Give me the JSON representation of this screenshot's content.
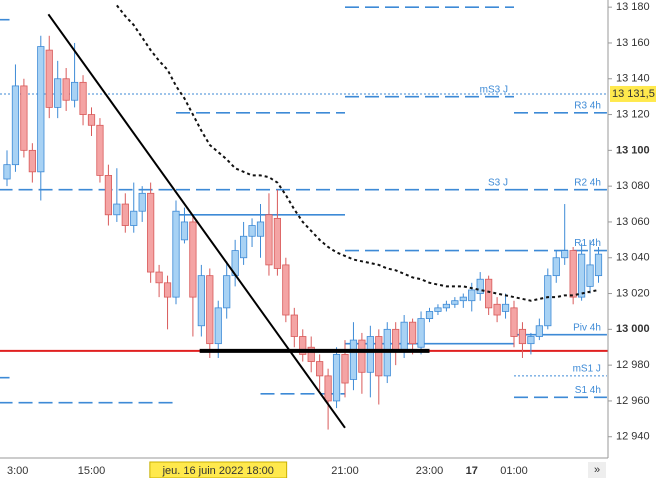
{
  "chart_data": {
    "type": "candlestick",
    "categories": [
      "3:00",
      null,
      null,
      null,
      null,
      null,
      null,
      null,
      null,
      null,
      "15:00",
      null,
      null,
      null,
      null,
      null,
      null,
      null,
      null,
      null,
      null,
      null,
      null,
      null,
      null,
      "jeu. 16 juin 2022 18:00",
      null,
      null,
      null,
      null,
      null,
      null,
      null,
      null,
      null,
      null,
      null,
      null,
      null,
      null,
      "21:00",
      null,
      null,
      null,
      null,
      null,
      null,
      null,
      null,
      null,
      "23:00",
      null,
      null,
      null,
      null,
      "17",
      null,
      null,
      null,
      null,
      "01:00",
      null,
      null,
      null,
      null,
      null,
      null,
      null,
      null,
      null,
      null
    ],
    "ohlc": {
      "open": [
        13084,
        13092,
        13136,
        13100,
        13088,
        13156,
        13124,
        13140,
        13128,
        13138,
        13120,
        13114,
        13086,
        13064,
        13070,
        13058,
        13066,
        13076,
        13032,
        13026,
        13018,
        13050,
        13060,
        13002,
        13030,
        12992,
        13012,
        13030,
        13040,
        13052,
        13052,
        13064,
        13062,
        13036,
        13008,
        12996,
        12990,
        12982,
        12974,
        12960,
        12986,
        12972,
        12994,
        12976,
        12996,
        12974,
        13000,
        12988,
        13004,
        12990,
        13006,
        13010,
        13012,
        13014,
        13016,
        13016,
        13020,
        13028,
        13014,
        13010,
        13012,
        13000,
        12992,
        12996,
        13002,
        13030,
        13040,
        13044,
        13018,
        13024,
        13030
      ],
      "high": [
        13100,
        13148,
        13140,
        13104,
        13164,
        13164,
        13150,
        13146,
        13160,
        13142,
        13124,
        13118,
        13092,
        13090,
        13076,
        13082,
        13080,
        13082,
        13036,
        13030,
        13072,
        13068,
        13064,
        13036,
        13034,
        13016,
        13038,
        13050,
        13060,
        13062,
        13070,
        13076,
        13078,
        13040,
        13012,
        13000,
        12996,
        12986,
        12978,
        12990,
        12994,
        13004,
        12998,
        13002,
        13000,
        13004,
        13004,
        13008,
        13006,
        13010,
        13012,
        13014,
        13016,
        13018,
        13020,
        13026,
        13032,
        13030,
        13018,
        13020,
        13016,
        13004,
        12998,
        13006,
        13034,
        13044,
        13070,
        13046,
        13048,
        13050,
        13046
      ],
      "low": [
        13080,
        13088,
        13096,
        13082,
        13072,
        13118,
        13118,
        13122,
        13124,
        13114,
        13108,
        13082,
        13058,
        13060,
        13054,
        13054,
        13060,
        13026,
        13018,
        13000,
        13014,
        13048,
        12996,
        12996,
        12984,
        12984,
        13006,
        13024,
        13036,
        13046,
        13040,
        13030,
        13030,
        13004,
        12990,
        12982,
        12976,
        12966,
        12944,
        12956,
        12962,
        12966,
        12964,
        12962,
        12958,
        12970,
        12980,
        12984,
        12986,
        12986,
        13004,
        13008,
        13010,
        13012,
        13012,
        13010,
        13016,
        13008,
        13004,
        13006,
        12990,
        12984,
        12986,
        12994,
        13000,
        13026,
        13036,
        13014,
        13016,
        13020,
        13026
      ],
      "close": [
        13092,
        13136,
        13100,
        13088,
        13158,
        13124,
        13140,
        13128,
        13138,
        13120,
        13114,
        13086,
        13064,
        13070,
        13058,
        13066,
        13076,
        13032,
        13026,
        13018,
        13066,
        13060,
        13018,
        13030,
        12992,
        13012,
        13030,
        13044,
        13052,
        13058,
        13060,
        13036,
        13034,
        13008,
        12996,
        12986,
        12982,
        12974,
        12960,
        12986,
        12970,
        12994,
        12976,
        12996,
        12974,
        13000,
        12988,
        13004,
        12992,
        13006,
        13010,
        13012,
        13014,
        13016,
        13018,
        13022,
        13028,
        13012,
        13008,
        13014,
        12996,
        12992,
        12996,
        13002,
        13030,
        13040,
        13044,
        13018,
        13042,
        13036,
        13042
      ]
    },
    "up_color": "#a8d2f4",
    "up_edge": "#3d8ad6",
    "down_color": "#f4a4a4",
    "down_edge": "#d85a5a",
    "moving_average": [
      null,
      null,
      null,
      null,
      null,
      null,
      null,
      null,
      null,
      null,
      null,
      null,
      null,
      13181,
      13175,
      13170,
      13163,
      13156,
      13150,
      13145,
      13136,
      13129,
      13120,
      13111,
      13103,
      13099,
      13095,
      13090,
      13088,
      13086,
      13086,
      13085,
      13082,
      13075,
      13067,
      13060,
      13055,
      13050,
      13046,
      13043,
      13041,
      13039,
      13038,
      13037,
      13036,
      13034,
      13033,
      13031,
      13029,
      13028,
      13026,
      13025,
      13024,
      13024,
      13024,
      13023,
      13022,
      13021,
      13020,
      13019,
      13018,
      13017,
      13016,
      13017,
      13018,
      13018,
      13019,
      13019,
      13020,
      13021,
      13022
    ],
    "levels": [
      {
        "value": 13173,
        "from": -1,
        "to": 0.3,
        "style": "dashed"
      },
      {
        "value": 13078,
        "from": -1,
        "to": 20,
        "style": "dashed"
      },
      {
        "value": 12973,
        "from": -1,
        "to": 0.3,
        "style": "dashed"
      },
      {
        "value": 12959,
        "from": -1,
        "to": 20,
        "style": "dashed"
      },
      {
        "value": 13121,
        "from": 20,
        "to": 40,
        "style": "dashed"
      },
      {
        "value": 13078,
        "from": 20,
        "to": 40,
        "style": "dashed"
      },
      {
        "value": 13064,
        "from": 20,
        "to": 40,
        "style": "solid"
      },
      {
        "value": 12964,
        "from": 30,
        "to": 40,
        "style": "dashed"
      },
      {
        "value": 13180,
        "from": 40,
        "to": 60,
        "style": "dashed"
      },
      {
        "value": 13130,
        "from": 40,
        "to": 60,
        "style": "dashed",
        "label": "mS3 J"
      },
      {
        "value": 13078,
        "from": 40,
        "to": 60,
        "style": "dashed",
        "label": "S3 J"
      },
      {
        "value": 13044,
        "from": 40,
        "to": 60,
        "style": "dashed"
      },
      {
        "value": 12992,
        "from": 40,
        "to": 60,
        "style": "solid"
      },
      {
        "value": 13121,
        "from": 60,
        "to": 71,
        "style": "dashed",
        "label": "R3 4h"
      },
      {
        "value": 13078,
        "from": 60,
        "to": 71,
        "style": "dashed",
        "label": "R2 4h"
      },
      {
        "value": 13044,
        "from": 60,
        "to": 71,
        "style": "dashed",
        "label": "R1 4h"
      },
      {
        "value": 12997,
        "from": 60,
        "to": 71,
        "style": "solid",
        "label": "Piv 4h"
      },
      {
        "value": 12974,
        "from": 60,
        "to": 71,
        "style": "dotted",
        "label": "mS1 J"
      },
      {
        "value": 12962,
        "from": 60,
        "to": 71,
        "style": "dashed",
        "label": "S1 4h"
      }
    ],
    "level_color": "#3d8ad6",
    "trendline": {
      "x": [
        4.9,
        40
      ],
      "y": [
        13176,
        12945
      ]
    },
    "support": {
      "value": 12988,
      "from": 22.8,
      "to": 50
    },
    "red_line": 12988,
    "last_price": {
      "value": 13131.5,
      "label": "13 131,5"
    },
    "cursor_index": 25,
    "ylim": [
      12927,
      13184
    ],
    "yticks": [
      {
        "value": 12940,
        "label": "12 940"
      },
      {
        "value": 12960,
        "label": "12 960"
      },
      {
        "value": 12980,
        "label": "12 980"
      },
      {
        "value": 13000,
        "label": "13 000"
      },
      {
        "value": 13020,
        "label": "13 020"
      },
      {
        "value": 13040,
        "label": "13 040"
      },
      {
        "value": 13060,
        "label": "13 060"
      },
      {
        "value": 13080,
        "label": "13 080"
      },
      {
        "value": 13100,
        "label": "13 100"
      },
      {
        "value": 13120,
        "label": "13 120"
      },
      {
        "value": 13140,
        "label": "13 140"
      },
      {
        "value": 13160,
        "label": "13 160"
      },
      {
        "value": 13180,
        "label": "13 180"
      }
    ],
    "more_button": "»"
  }
}
